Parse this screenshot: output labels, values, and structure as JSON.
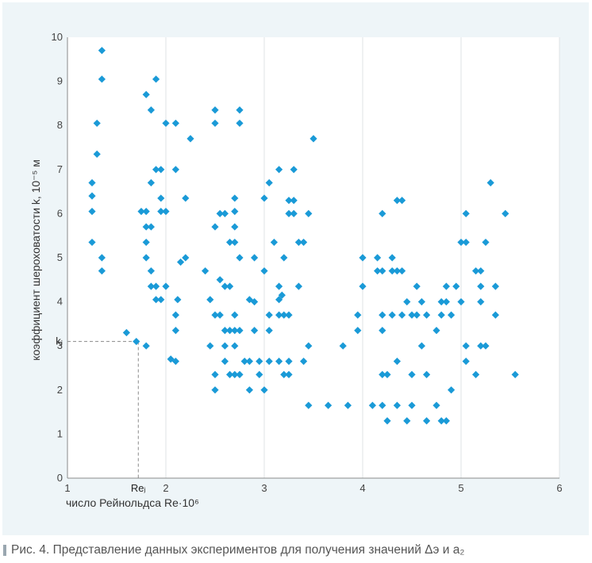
{
  "caption": {
    "text": "Рис. 4. Представление данных экспериментов для получения значений Δэ и a₂"
  },
  "chart_data": {
    "type": "scatter",
    "title": "",
    "xlabel": "число Рейнольдса Re·10⁶",
    "ylabel": "коэффициент шероховатости k, 10⁻⁵ м",
    "xlim": [
      1,
      6
    ],
    "ylim": [
      0,
      10
    ],
    "x_ticks": [
      1,
      2,
      3,
      4,
      5,
      6
    ],
    "y_ticks": [
      0,
      1,
      2,
      3,
      4,
      5,
      6,
      7,
      8,
      9,
      10
    ],
    "x_tick_labels": [
      "1",
      "2",
      "3",
      "4",
      "5",
      "6"
    ],
    "y_tick_labels": [
      "0",
      "1",
      "2",
      "3",
      "4",
      "5",
      "6",
      "7",
      "8",
      "9",
      "10"
    ],
    "grid": "vertical",
    "marker_color": "#1a9ad7",
    "reference": {
      "x": 1.72,
      "y": 3.1,
      "x_label": "Reⱼ",
      "y_label": "kⱼ"
    },
    "points": [
      [
        1.25,
        6.7
      ],
      [
        1.25,
        6.4
      ],
      [
        1.25,
        6.05
      ],
      [
        1.25,
        5.35
      ],
      [
        1.3,
        8.05
      ],
      [
        1.3,
        7.35
      ],
      [
        1.35,
        9.7
      ],
      [
        1.35,
        9.05
      ],
      [
        1.35,
        5.0
      ],
      [
        1.35,
        4.7
      ],
      [
        1.6,
        3.3
      ],
      [
        1.7,
        3.1
      ],
      [
        1.75,
        6.05
      ],
      [
        1.8,
        8.7
      ],
      [
        1.8,
        6.05
      ],
      [
        1.8,
        5.7
      ],
      [
        1.8,
        5.35
      ],
      [
        1.8,
        5.0
      ],
      [
        1.8,
        3.0
      ],
      [
        1.85,
        8.35
      ],
      [
        1.85,
        6.7
      ],
      [
        1.85,
        5.7
      ],
      [
        1.85,
        4.7
      ],
      [
        1.85,
        4.35
      ],
      [
        1.9,
        9.05
      ],
      [
        1.9,
        7.0
      ],
      [
        1.9,
        4.35
      ],
      [
        1.9,
        4.05
      ],
      [
        1.95,
        7.0
      ],
      [
        1.95,
        6.35
      ],
      [
        1.95,
        6.05
      ],
      [
        1.95,
        4.05
      ],
      [
        2.0,
        8.05
      ],
      [
        2.0,
        6.05
      ],
      [
        2.0,
        4.35
      ],
      [
        2.05,
        2.7
      ],
      [
        2.1,
        8.05
      ],
      [
        2.1,
        7.0
      ],
      [
        2.1,
        3.7
      ],
      [
        2.1,
        3.35
      ],
      [
        2.1,
        2.65
      ],
      [
        2.12,
        4.05
      ],
      [
        2.15,
        4.9
      ],
      [
        2.2,
        6.35
      ],
      [
        2.2,
        5.0
      ],
      [
        2.25,
        7.7
      ],
      [
        2.4,
        4.7
      ],
      [
        2.45,
        4.05
      ],
      [
        2.45,
        3.0
      ],
      [
        2.5,
        8.35
      ],
      [
        2.5,
        8.05
      ],
      [
        2.5,
        5.7
      ],
      [
        2.5,
        3.7
      ],
      [
        2.5,
        2.35
      ],
      [
        2.5,
        2.0
      ],
      [
        2.55,
        6.0
      ],
      [
        2.55,
        4.5
      ],
      [
        2.55,
        3.7
      ],
      [
        2.6,
        6.0
      ],
      [
        2.6,
        4.35
      ],
      [
        2.6,
        3.35
      ],
      [
        2.6,
        3.0
      ],
      [
        2.6,
        2.65
      ],
      [
        2.65,
        5.35
      ],
      [
        2.65,
        4.35
      ],
      [
        2.65,
        3.35
      ],
      [
        2.65,
        2.35
      ],
      [
        2.7,
        6.35
      ],
      [
        2.7,
        5.7
      ],
      [
        2.7,
        5.35
      ],
      [
        2.7,
        6.05
      ],
      [
        2.7,
        3.7
      ],
      [
        2.7,
        3.35
      ],
      [
        2.7,
        3.0
      ],
      [
        2.7,
        2.35
      ],
      [
        2.75,
        8.35
      ],
      [
        2.75,
        8.05
      ],
      [
        2.75,
        5.0
      ],
      [
        2.75,
        3.35
      ],
      [
        2.75,
        2.35
      ],
      [
        2.8,
        2.65
      ],
      [
        2.85,
        4.05
      ],
      [
        2.85,
        2.65
      ],
      [
        2.85,
        2.0
      ],
      [
        2.9,
        5.0
      ],
      [
        2.9,
        4.0
      ],
      [
        2.9,
        3.35
      ],
      [
        2.95,
        2.65
      ],
      [
        2.95,
        2.35
      ],
      [
        3.0,
        6.35
      ],
      [
        3.0,
        4.7
      ],
      [
        3.0,
        2.0
      ],
      [
        3.05,
        6.7
      ],
      [
        3.05,
        3.7
      ],
      [
        3.05,
        3.35
      ],
      [
        3.05,
        2.65
      ],
      [
        3.1,
        5.35
      ],
      [
        3.15,
        7.0
      ],
      [
        3.15,
        4.35
      ],
      [
        3.15,
        4.05
      ],
      [
        3.15,
        3.7
      ],
      [
        3.15,
        2.65
      ],
      [
        3.18,
        4.15
      ],
      [
        3.2,
        5.0
      ],
      [
        3.2,
        3.7
      ],
      [
        3.2,
        2.35
      ],
      [
        3.25,
        6.3
      ],
      [
        3.25,
        6.0
      ],
      [
        3.25,
        3.7
      ],
      [
        3.25,
        2.65
      ],
      [
        3.25,
        2.35
      ],
      [
        3.3,
        7.0
      ],
      [
        3.3,
        6.3
      ],
      [
        3.3,
        6.0
      ],
      [
        3.35,
        5.35
      ],
      [
        3.35,
        4.35
      ],
      [
        3.4,
        5.35
      ],
      [
        3.4,
        2.65
      ],
      [
        3.45,
        6.0
      ],
      [
        3.45,
        3.0
      ],
      [
        3.5,
        7.7
      ],
      [
        3.45,
        1.65
      ],
      [
        3.65,
        1.65
      ],
      [
        3.85,
        1.65
      ],
      [
        3.8,
        3.0
      ],
      [
        3.95,
        3.7
      ],
      [
        3.95,
        3.35
      ],
      [
        4.0,
        5.0
      ],
      [
        4.0,
        4.35
      ],
      [
        4.1,
        1.65
      ],
      [
        4.15,
        5.0
      ],
      [
        4.15,
        4.7
      ],
      [
        4.2,
        6.0
      ],
      [
        4.2,
        4.7
      ],
      [
        4.2,
        3.7
      ],
      [
        4.2,
        3.35
      ],
      [
        4.2,
        2.35
      ],
      [
        4.2,
        1.65
      ],
      [
        4.25,
        2.35
      ],
      [
        4.25,
        1.3
      ],
      [
        4.3,
        5.0
      ],
      [
        4.3,
        4.7
      ],
      [
        4.3,
        3.7
      ],
      [
        4.35,
        6.3
      ],
      [
        4.35,
        4.7
      ],
      [
        4.35,
        2.65
      ],
      [
        4.35,
        1.65
      ],
      [
        4.4,
        6.3
      ],
      [
        4.4,
        4.7
      ],
      [
        4.4,
        3.7
      ],
      [
        4.45,
        4.0
      ],
      [
        4.45,
        1.3
      ],
      [
        4.5,
        3.7
      ],
      [
        4.5,
        2.35
      ],
      [
        4.5,
        1.65
      ],
      [
        4.55,
        4.35
      ],
      [
        4.55,
        3.7
      ],
      [
        4.6,
        4.0
      ],
      [
        4.6,
        3.0
      ],
      [
        4.65,
        3.7
      ],
      [
        4.65,
        2.35
      ],
      [
        4.65,
        1.3
      ],
      [
        4.75,
        3.35
      ],
      [
        4.75,
        1.65
      ],
      [
        4.8,
        4.0
      ],
      [
        4.8,
        3.7
      ],
      [
        4.8,
        1.3
      ],
      [
        4.85,
        4.35
      ],
      [
        4.85,
        4.0
      ],
      [
        4.85,
        1.3
      ],
      [
        4.9,
        3.7
      ],
      [
        4.9,
        2.0
      ],
      [
        4.95,
        4.35
      ],
      [
        5.0,
        5.35
      ],
      [
        5.0,
        4.0
      ],
      [
        5.05,
        6.0
      ],
      [
        5.05,
        5.35
      ],
      [
        5.05,
        3.0
      ],
      [
        5.05,
        2.65
      ],
      [
        5.15,
        4.7
      ],
      [
        5.15,
        2.35
      ],
      [
        5.2,
        4.7
      ],
      [
        5.2,
        4.35
      ],
      [
        5.2,
        4.0
      ],
      [
        5.2,
        3.0
      ],
      [
        5.25,
        5.35
      ],
      [
        5.25,
        3.0
      ],
      [
        5.3,
        6.7
      ],
      [
        5.35,
        4.35
      ],
      [
        5.35,
        3.7
      ],
      [
        5.45,
        6.0
      ],
      [
        5.55,
        2.35
      ]
    ]
  }
}
